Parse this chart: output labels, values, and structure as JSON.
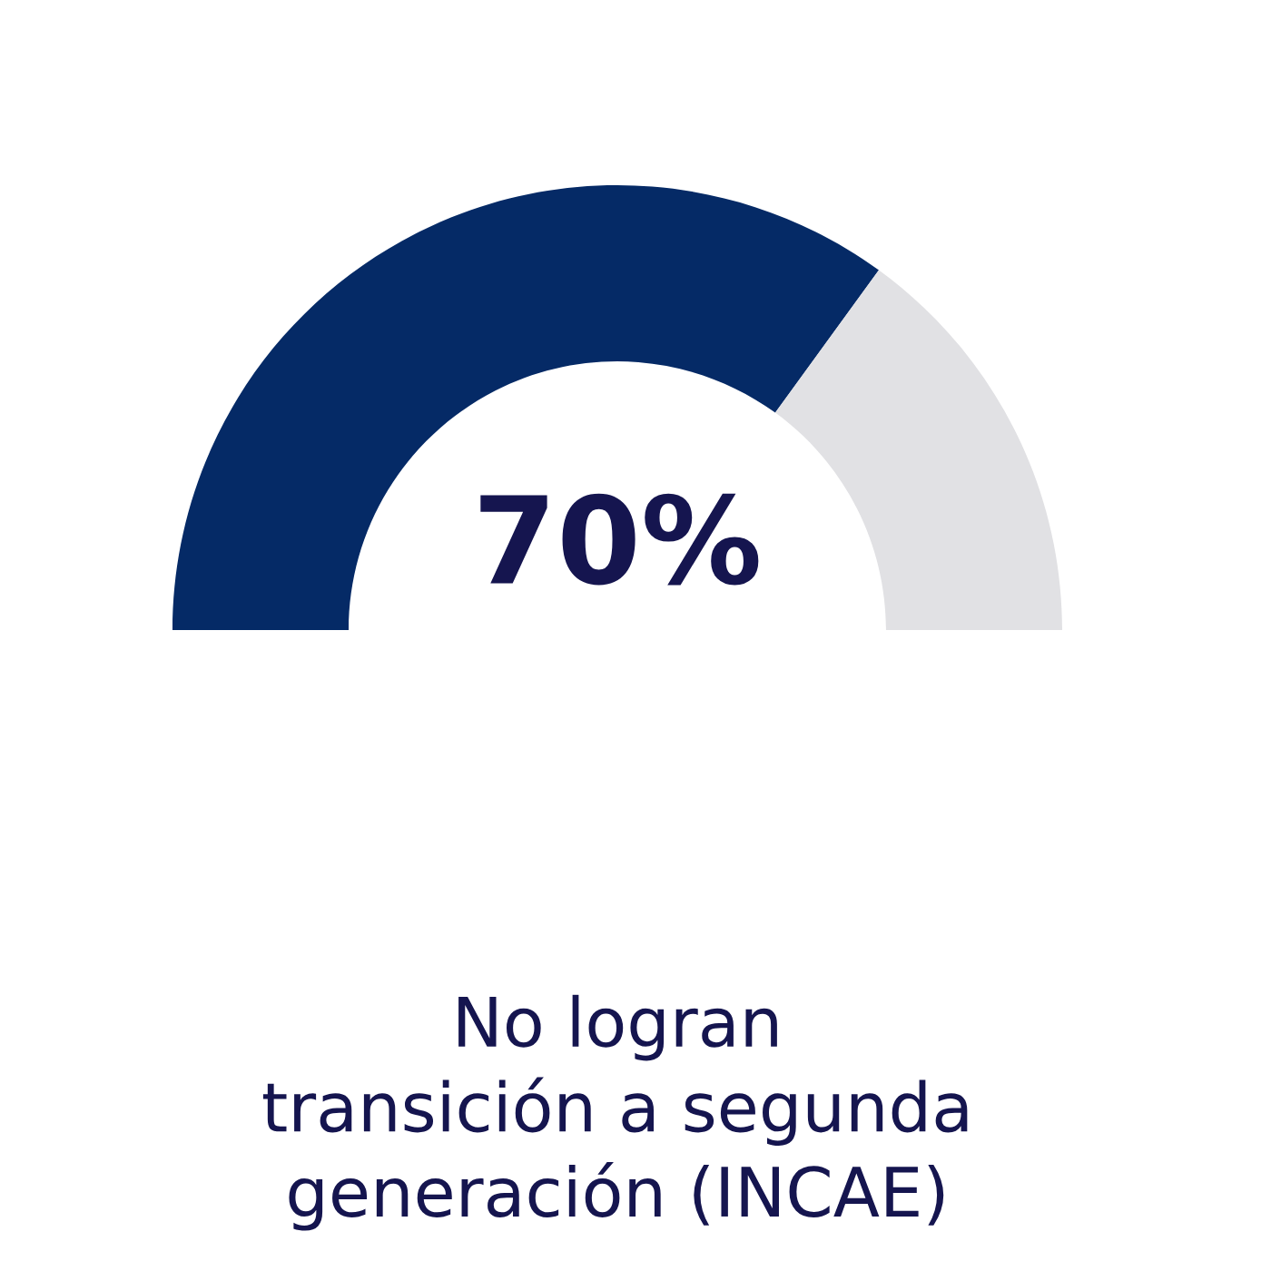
{
  "chart_data": {
    "type": "donut",
    "categories": [
      null,
      null
    ],
    "values": [
      70,
      30
    ],
    "colors": [
      "#052a66",
      "#e1e1e4"
    ],
    "value_labels": [
      "70%",
      null
    ],
    "annotations": [
      "No logran\ntransición a segunda\ngeneración (INCAE)"
    ]
  }
}
